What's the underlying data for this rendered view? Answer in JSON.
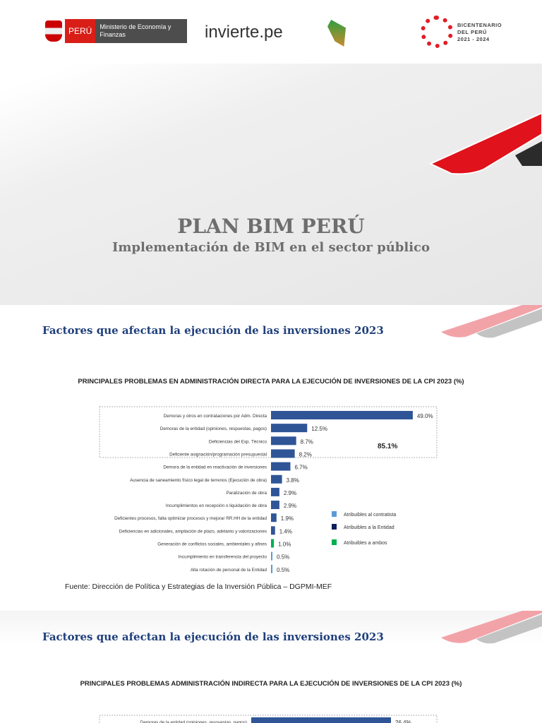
{
  "header": {
    "logo_peru": "PERÚ",
    "logo_ministry": "Ministerio de Economía y Finanzas",
    "logo_invierte": "invierte.pe",
    "logo_punche": "Con Punche Perú",
    "logo_bicentenario": "BICENTENARIO DEL PERÚ 2021 - 2024"
  },
  "slide1": {
    "title": "PLAN BIM PERÚ",
    "subtitle": "Implementación de BIM en el sector público"
  },
  "slide2": {
    "heading": "Factores que afectan la ejecución de las inversiones 2023",
    "source": "Fuente: Dirección de Política y Estrategias de la Inversión Pública – DGPMI-MEF"
  },
  "slide3": {
    "heading": "Factores que afectan la ejecución de las inversiones 2023"
  },
  "colors": {
    "contratista": "#5b9bd5",
    "entidad": "#2f5597",
    "ambos": "#00b050",
    "legend_entidad": "#0b1f5c",
    "red": "#e0121b"
  },
  "chart_data": [
    {
      "type": "bar",
      "orientation": "horizontal",
      "title": "PRINCIPALES PROBLEMAS EN ADMINISTRACIÓN DIRECTA PARA LA EJECUCIÓN DE INVERSIONES DE LA CPI 2023 (%)",
      "categories": [
        "Demoras y otros en contrataciones por Adm. Directa",
        "Demoras de la entidad (opiniones, respuestas, pagos)",
        "Deficiencias del Exp. Técnico",
        "Deficiente asignación/programación presupuestal",
        "Demora de la entidad en reactivación de inversiones",
        "Ausencia de saneamiento físico legal de terrenos (Ejecución de obra)",
        "Paralización de obra",
        "Incumplimientos en recepción o liquidación de obra",
        "Deficientes procesos, falta optimizar procesos y mejorar RR.HH de la entidad",
        "Deficiencias en adicionales, ampliación de plazo, adelanto y valorizaciones",
        "Generación de conflictos sociales, ambientales y afines",
        "Incumplimiento en transferencia del proyecto",
        "Alta rotación de personal de la Entidad"
      ],
      "values": [
        49.0,
        12.5,
        8.7,
        8.2,
        6.7,
        3.8,
        2.9,
        2.9,
        1.9,
        1.4,
        1.0,
        0.5,
        0.5
      ],
      "labels": [
        "49.0%",
        "12.5%",
        "8.7%",
        "8.2%",
        "6.7%",
        "3.8%",
        "2.9%",
        "2.9%",
        "1.9%",
        "1.4%",
        "1.0%",
        "0.5%",
        "0.5%"
      ],
      "groups": [
        "entidad",
        "entidad",
        "entidad",
        "entidad",
        "entidad",
        "entidad",
        "entidad",
        "entidad",
        "entidad",
        "entidad",
        "ambos",
        "contratista",
        "contratista"
      ],
      "annotation": "85.1%",
      "legend": [
        "Atribuibles al contratista",
        "Atribuibles a la Entidad",
        "Atribuibles a ambos"
      ],
      "legend_placement": "right",
      "grid": false
    },
    {
      "type": "bar",
      "orientation": "horizontal",
      "title": "PRINCIPALES PROBLEMAS ADMINISTRACIÓN INDIRECTA PARA LA EJECUCIÓN DE INVERSIONES DE LA CPI 2023 (%)",
      "categories": [
        "Demoras de la entidad (opiniones, respuestas, pagos)"
      ],
      "values": [
        26.4
      ],
      "labels": [
        "26.4%"
      ],
      "groups": [
        "entidad"
      ],
      "grid": false
    }
  ]
}
